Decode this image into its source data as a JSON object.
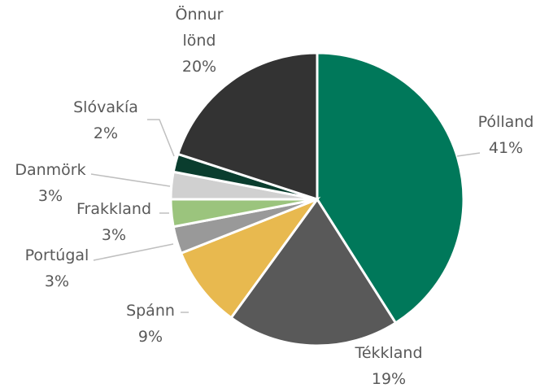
{
  "chart_data": {
    "type": "pie",
    "categories": [
      "Pólland",
      "Tékkland",
      "Spánn",
      "Portúgal",
      "Frakkland",
      "Danmörk",
      "Slóvakía",
      "Önnur lönd"
    ],
    "values": [
      41,
      19,
      9,
      3,
      3,
      3,
      2,
      20
    ],
    "value_labels": [
      "41%",
      "19%",
      "9%",
      "3%",
      "3%",
      "3%",
      "2%",
      "20%"
    ],
    "colors": [
      "#00785a",
      "#595959",
      "#e8b94f",
      "#999999",
      "#9bc47d",
      "#d0d0d0",
      "#0a3d2e",
      "#333333"
    ]
  }
}
